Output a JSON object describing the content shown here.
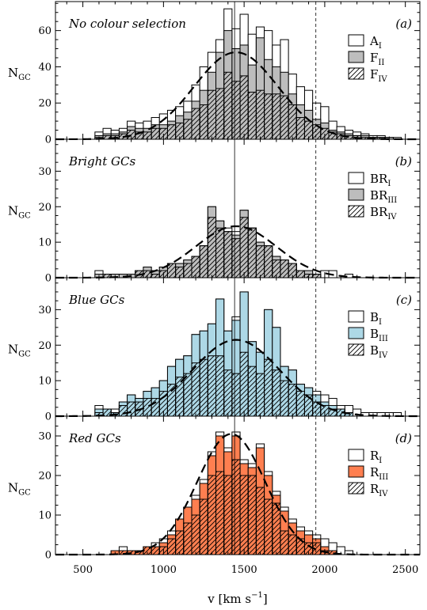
{
  "figure": {
    "xlabel": "v [km s",
    "xlabel_exp": "−1",
    "xlabel_close": "]",
    "ylabel_main": "N",
    "ylabel_sub": "GC"
  },
  "colors": {
    "grey_fill": "#bdbdbd",
    "blue_fill": "#add8e6",
    "red_fill": "#ff7f50",
    "open_fill": "#ffffff",
    "edge": "#000000"
  },
  "reference_lines": {
    "solid_x": 1441,
    "dashed_x": 1945
  },
  "chart_data": [
    {
      "id": "a",
      "type": "bar",
      "title": "No colour selection",
      "letter": "(a)",
      "xlim": [
        330,
        2590
      ],
      "ylim": [
        0,
        76
      ],
      "yticks": [
        0,
        20,
        40,
        60
      ],
      "xticks": [
        500,
        1000,
        1500,
        2000,
        2500
      ],
      "bin_width": 50,
      "x": [
        600,
        650,
        700,
        750,
        800,
        850,
        900,
        950,
        1000,
        1050,
        1100,
        1150,
        1200,
        1250,
        1300,
        1350,
        1400,
        1450,
        1500,
        1550,
        1600,
        1650,
        1700,
        1750,
        1800,
        1850,
        1900,
        1950,
        2000,
        2050,
        2100,
        2150,
        2200,
        2250,
        2300,
        2350,
        2400,
        2450
      ],
      "series": [
        {
          "legend": "A",
          "legend_sub": "I",
          "style": "open",
          "values": [
            4,
            6,
            5,
            6,
            10,
            9,
            10,
            12,
            14,
            16,
            18,
            21,
            30,
            40,
            48,
            55,
            72,
            61,
            69,
            58,
            62,
            60,
            52,
            55,
            36,
            29,
            27,
            20,
            18,
            10,
            7,
            5,
            4,
            3,
            2,
            2,
            1,
            1
          ]
        },
        {
          "legend": "F",
          "legend_sub": "II",
          "style": "grey",
          "values": [
            2,
            3,
            3,
            4,
            7,
            6,
            6,
            8,
            8,
            10,
            13,
            15,
            21,
            27,
            37,
            48,
            60,
            50,
            52,
            41,
            56,
            44,
            40,
            37,
            25,
            19,
            16,
            11,
            9,
            5,
            4,
            3,
            2,
            2,
            1,
            1,
            1,
            0
          ]
        },
        {
          "legend": "F",
          "legend_sub": "IV",
          "style": "hatch",
          "values": [
            1,
            2,
            2,
            3,
            5,
            4,
            4,
            6,
            6,
            8,
            9,
            11,
            17,
            19,
            27,
            28,
            37,
            32,
            35,
            26,
            27,
            25,
            25,
            24,
            19,
            12,
            10,
            8,
            6,
            4,
            3,
            2,
            2,
            1,
            1,
            1,
            0,
            0
          ]
        }
      ],
      "gaussian": {
        "mean": 1450,
        "sigma": 260,
        "amplitude": 48
      }
    },
    {
      "id": "b",
      "type": "bar",
      "title": "Bright GCs",
      "letter": "(b)",
      "xlim": [
        330,
        2590
      ],
      "ylim": [
        0,
        39
      ],
      "yticks": [
        0,
        10,
        20,
        30
      ],
      "xticks": [
        500,
        1000,
        1500,
        2000,
        2500
      ],
      "bin_width": 50,
      "x": [
        600,
        650,
        700,
        750,
        800,
        850,
        900,
        950,
        1000,
        1050,
        1100,
        1150,
        1200,
        1250,
        1300,
        1350,
        1400,
        1450,
        1500,
        1550,
        1600,
        1650,
        1700,
        1750,
        1800,
        1850,
        1900,
        1950,
        2000,
        2050,
        2100,
        2150,
        2200,
        2250,
        2300,
        2350,
        2400,
        2450
      ],
      "series": [
        {
          "legend": "BR",
          "legend_sub": "I",
          "style": "open",
          "values": [
            2,
            1,
            1,
            1,
            1,
            2,
            3,
            2,
            3,
            4,
            4,
            5,
            6,
            9,
            20,
            16,
            14,
            13,
            19,
            14,
            10,
            9,
            6,
            5,
            4,
            2,
            2,
            1,
            2,
            2,
            0,
            1,
            0,
            0,
            0,
            0,
            0,
            0
          ]
        },
        {
          "legend": "BR",
          "legend_sub": "III",
          "style": "grey",
          "values": [
            1,
            1,
            1,
            1,
            1,
            2,
            3,
            2,
            3,
            4,
            4,
            5,
            6,
            9,
            20,
            16,
            13,
            12,
            19,
            14,
            10,
            9,
            6,
            5,
            4,
            2,
            2,
            1,
            0,
            0,
            0,
            0,
            0,
            0,
            0,
            0,
            0,
            0
          ]
        },
        {
          "legend": "BR",
          "legend_sub": "IV",
          "style": "hatch",
          "values": [
            0,
            1,
            0,
            0,
            0,
            2,
            2,
            1,
            2,
            4,
            3,
            4,
            6,
            9,
            17,
            14,
            13,
            11,
            17,
            14,
            9,
            9,
            5,
            5,
            4,
            2,
            1,
            1,
            0,
            0,
            0,
            0,
            0,
            0,
            0,
            0,
            0,
            0
          ]
        }
      ],
      "gaussian": {
        "mean": 1450,
        "sigma": 250,
        "amplitude": 14.5
      }
    },
    {
      "id": "c",
      "type": "bar",
      "title": "Blue GCs",
      "letter": "(c)",
      "xlim": [
        330,
        2590
      ],
      "ylim": [
        0,
        39
      ],
      "yticks": [
        0,
        10,
        20,
        30
      ],
      "xticks": [
        500,
        1000,
        1500,
        2000,
        2500
      ],
      "bin_width": 50,
      "x": [
        600,
        650,
        700,
        750,
        800,
        850,
        900,
        950,
        1000,
        1050,
        1100,
        1150,
        1200,
        1250,
        1300,
        1350,
        1400,
        1450,
        1500,
        1550,
        1600,
        1650,
        1700,
        1750,
        1800,
        1850,
        1900,
        1950,
        2000,
        2050,
        2100,
        2150,
        2200,
        2250,
        2300,
        2350,
        2400,
        2450
      ],
      "series": [
        {
          "legend": "B",
          "legend_sub": "I",
          "style": "open",
          "values": [
            3,
            2,
            2,
            4,
            6,
            5,
            7,
            8,
            10,
            14,
            16,
            17,
            23,
            24,
            26,
            33,
            24,
            28,
            35,
            21,
            18,
            30,
            25,
            14,
            13,
            9,
            8,
            7,
            6,
            5,
            3,
            3,
            2,
            1,
            1,
            1,
            1,
            1
          ]
        },
        {
          "legend": "B",
          "legend_sub": "III",
          "style": "grey",
          "values": [
            2,
            2,
            1,
            4,
            6,
            5,
            7,
            8,
            10,
            14,
            16,
            17,
            23,
            24,
            26,
            33,
            24,
            27,
            35,
            21,
            18,
            30,
            25,
            14,
            13,
            9,
            8,
            6,
            4,
            3,
            2,
            1,
            0,
            0,
            0,
            0,
            0,
            0
          ]
        },
        {
          "legend": "B",
          "legend_sub": "IV",
          "style": "hatch",
          "values": [
            1,
            2,
            1,
            3,
            4,
            4,
            5,
            5,
            7,
            9,
            11,
            12,
            15,
            16,
            17,
            17,
            13,
            12,
            18,
            14,
            12,
            16,
            13,
            10,
            9,
            7,
            6,
            4,
            3,
            2,
            2,
            1,
            0,
            0,
            0,
            0,
            0,
            0
          ]
        }
      ],
      "gaussian": {
        "mean": 1450,
        "sigma": 270,
        "amplitude": 21.5
      }
    },
    {
      "id": "d",
      "type": "bar",
      "title": "Red GCs",
      "letter": "(d)",
      "xlim": [
        330,
        2590
      ],
      "ylim": [
        0,
        35
      ],
      "yticks": [
        0,
        10,
        20,
        30
      ],
      "xticks": [
        500,
        1000,
        1500,
        2000,
        2500
      ],
      "bin_width": 50,
      "x": [
        600,
        650,
        700,
        750,
        800,
        850,
        900,
        950,
        1000,
        1050,
        1100,
        1150,
        1200,
        1250,
        1300,
        1350,
        1400,
        1450,
        1500,
        1550,
        1600,
        1650,
        1700,
        1750,
        1800,
        1850,
        1900,
        1950,
        2000,
        2050,
        2100,
        2150,
        2200,
        2250,
        2300,
        2350,
        2400,
        2450
      ],
      "series": [
        {
          "legend": "R",
          "legend_sub": "I",
          "style": "open",
          "values": [
            0,
            0,
            1,
            2,
            1,
            1,
            2,
            3,
            4,
            6,
            9,
            12,
            15,
            19,
            26,
            31,
            27,
            31,
            24,
            23,
            28,
            21,
            16,
            12,
            9,
            7,
            6,
            5,
            4,
            3,
            2,
            1,
            0,
            0,
            0,
            0,
            0,
            0
          ]
        },
        {
          "legend": "R",
          "legend_sub": "III",
          "style": "grey",
          "values": [
            0,
            0,
            1,
            1,
            1,
            1,
            2,
            2,
            3,
            5,
            9,
            12,
            14,
            18,
            25,
            30,
            26,
            30,
            23,
            22,
            27,
            20,
            15,
            11,
            8,
            6,
            5,
            4,
            2,
            1,
            0,
            0,
            0,
            0,
            0,
            0,
            0,
            0
          ]
        },
        {
          "legend": "R",
          "legend_sub": "IV",
          "style": "hatch",
          "values": [
            0,
            0,
            0,
            1,
            1,
            1,
            2,
            2,
            2,
            4,
            6,
            8,
            10,
            14,
            20,
            21,
            20,
            24,
            20,
            20,
            17,
            14,
            13,
            6,
            5,
            4,
            3,
            3,
            1,
            1,
            0,
            0,
            0,
            0,
            0,
            0,
            0,
            0
          ]
        }
      ],
      "gaussian": {
        "mean": 1420,
        "sigma": 210,
        "amplitude": 30.5
      }
    }
  ]
}
